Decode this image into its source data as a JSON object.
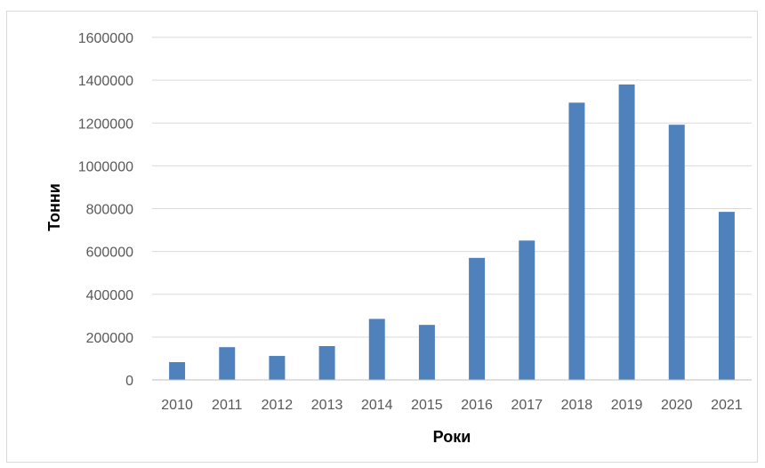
{
  "chart_data": {
    "type": "bar",
    "title": "",
    "xlabel": "Роки",
    "ylabel": "Тонни",
    "categories": [
      "2010",
      "2011",
      "2012",
      "2013",
      "2014",
      "2015",
      "2016",
      "2017",
      "2018",
      "2019",
      "2020",
      "2021"
    ],
    "series": [
      {
        "values": [
          83000,
          153000,
          112000,
          158000,
          285000,
          257000,
          570000,
          651000,
          1295000,
          1380000,
          1192000,
          785000
        ]
      }
    ],
    "ylim": [
      0,
      1600000
    ],
    "yticks": [
      "0",
      "200000",
      "400000",
      "600000",
      "800000",
      "1000000",
      "1200000",
      "1400000",
      "1600000"
    ],
    "grid": true,
    "legend": "none",
    "colors": {
      "bar": "#4f81bd",
      "grid": "#d9d9d9",
      "axis": "#bfbfbf"
    }
  }
}
